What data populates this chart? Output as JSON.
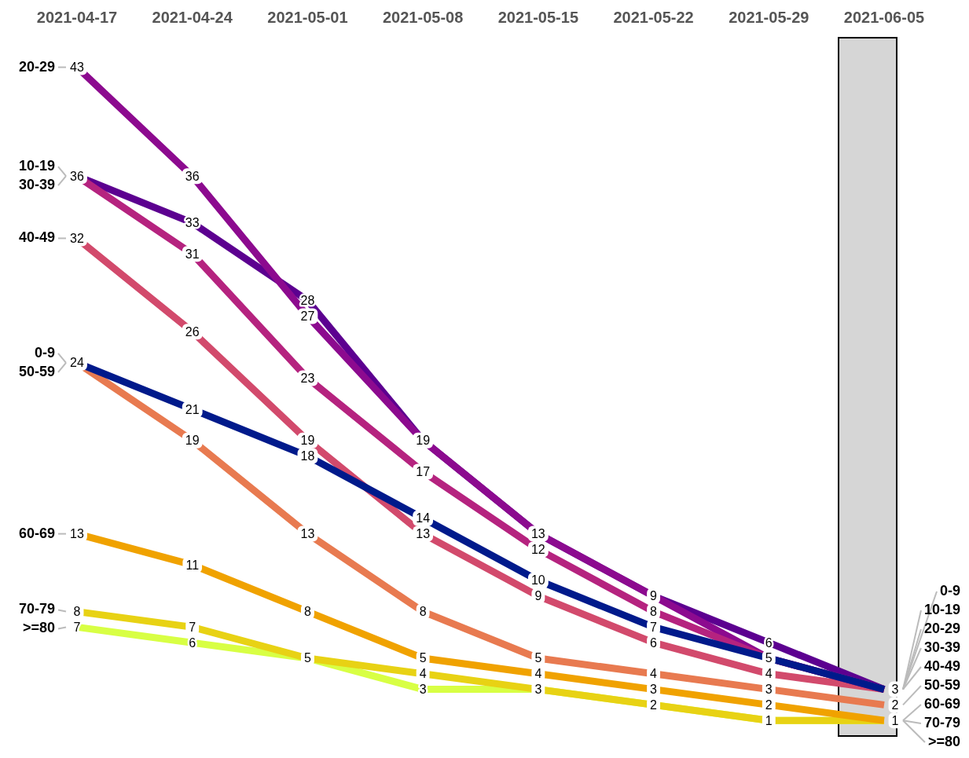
{
  "chart_data": {
    "type": "line",
    "categories": [
      "2021-04-17",
      "2021-04-24",
      "2021-05-01",
      "2021-05-08",
      "2021-05-15",
      "2021-05-22",
      "2021-05-29",
      "2021-06-05"
    ],
    "series": [
      {
        "name": "0-9",
        "color": "#001a8b",
        "values": [
          24,
          21,
          18,
          14,
          10,
          7,
          5,
          3
        ],
        "value_labels": [
          "24",
          "21",
          "18",
          "14",
          "10",
          "7",
          "5",
          "3"
        ]
      },
      {
        "name": "10-19",
        "color": "#b5237f",
        "values": [
          36,
          31,
          23,
          17,
          12,
          8,
          5,
          3
        ],
        "value_labels": [
          "36",
          "31",
          "23",
          "17",
          "12",
          "8",
          null,
          null
        ]
      },
      {
        "name": "20-29",
        "color": "#8c0a8f",
        "values": [
          43,
          36,
          27,
          19,
          13,
          9,
          5,
          3
        ],
        "value_labels": [
          "43",
          "36",
          "27",
          "19",
          "13",
          "9",
          null,
          null
        ]
      },
      {
        "name": "30-39",
        "color": "#5c0090",
        "values": [
          36,
          33,
          28,
          19,
          13,
          9,
          6,
          3
        ],
        "value_labels": [
          null,
          "33",
          "28",
          null,
          null,
          null,
          "6",
          null
        ],
        "marker": "none"
      },
      {
        "name": "40-49",
        "color": "#d24a6c",
        "values": [
          32,
          26,
          19,
          13,
          9,
          6,
          4,
          3
        ],
        "value_labels": [
          "32",
          "26",
          "19",
          "13",
          "9",
          "6",
          "4",
          null
        ]
      },
      {
        "name": "50-59",
        "color": "#e87a50",
        "values": [
          24,
          19,
          13,
          8,
          5,
          4,
          3,
          2
        ],
        "value_labels": [
          null,
          "19",
          "13",
          "8",
          "5",
          "4",
          "3",
          "2"
        ]
      },
      {
        "name": "60-69",
        "color": "#f0a200",
        "values": [
          13,
          11,
          8,
          5,
          4,
          3,
          2,
          1
        ],
        "value_labels": [
          "13",
          "11",
          "8",
          "5",
          "4",
          "3",
          "2",
          "1"
        ]
      },
      {
        "name": "70-79",
        "color": "#e8d214",
        "values": [
          8,
          7,
          5,
          4,
          3,
          2,
          1,
          1
        ],
        "value_labels": [
          "8",
          "7",
          "5",
          "4",
          "3",
          "2",
          "1",
          null
        ]
      },
      {
        "name": ">=80",
        "color": "#d8ff44",
        "values": [
          7,
          6,
          5,
          3,
          3,
          2,
          1,
          1
        ],
        "value_labels": [
          "7",
          "6",
          null,
          "3",
          null,
          null,
          null,
          null
        ],
        "marker": "none"
      }
    ],
    "bands": [
      {
        "axis": "x",
        "from": "2021-06-05",
        "to": "2021-06-05",
        "color": "#d6d6d6"
      }
    ],
    "marker": "square",
    "legend": false,
    "grid": false,
    "tick_labels": "x"
  }
}
